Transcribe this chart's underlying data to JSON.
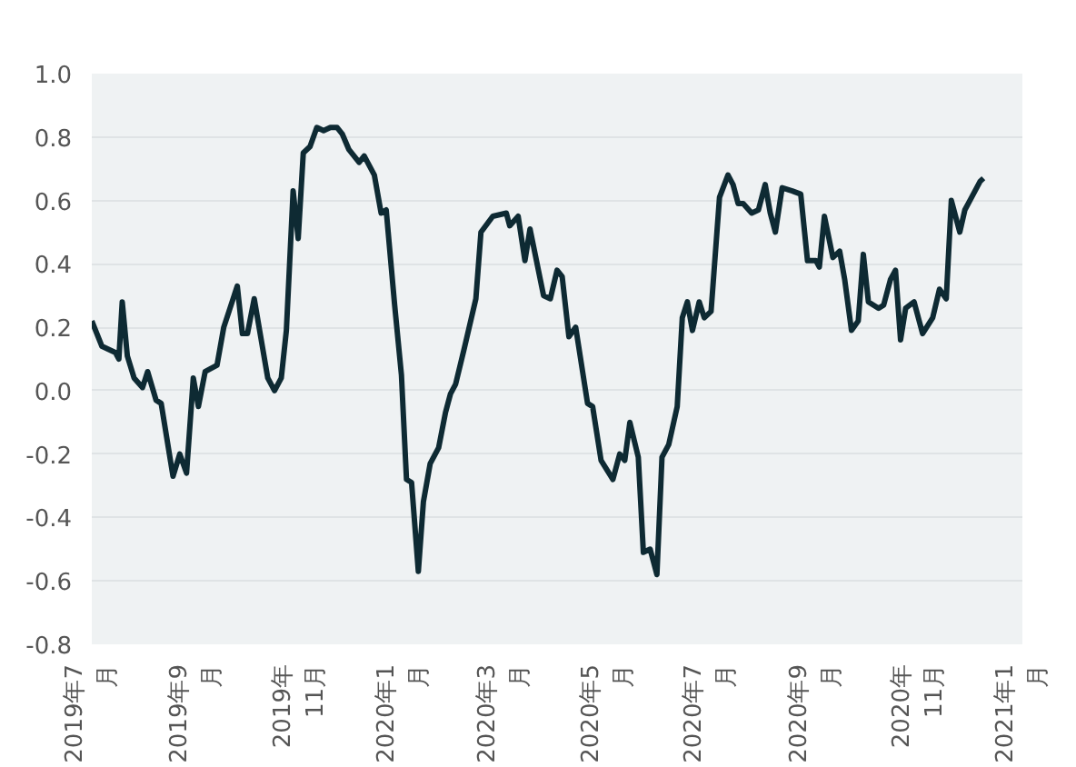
{
  "chart_data": {
    "type": "line",
    "grid": "y",
    "line_style": "solid",
    "marker": "none",
    "x": [
      "2019-07-01",
      "2019-07-07",
      "2019-07-15",
      "2019-07-17",
      "2019-07-19",
      "2019-07-22",
      "2019-07-26",
      "2019-07-31",
      "2019-08-03",
      "2019-08-08",
      "2019-08-11",
      "2019-08-18",
      "2019-08-22",
      "2019-08-26",
      "2019-08-30",
      "2019-09-02",
      "2019-09-06",
      "2019-09-13",
      "2019-09-17",
      "2019-09-25",
      "2019-09-28",
      "2019-10-01",
      "2019-10-05",
      "2019-10-13",
      "2019-10-17",
      "2019-10-21",
      "2019-10-24",
      "2019-10-28",
      "2019-10-31",
      "2019-11-03",
      "2019-11-07",
      "2019-11-11",
      "2019-11-15",
      "2019-11-19",
      "2019-11-23",
      "2019-11-26",
      "2019-11-30",
      "2019-12-06",
      "2019-12-09",
      "2019-12-15",
      "2019-12-19",
      "2019-12-22",
      "2019-12-27",
      "2019-12-31",
      "2020-01-03",
      "2020-01-06",
      "2020-01-10",
      "2020-01-13",
      "2020-01-17",
      "2020-01-22",
      "2020-01-26",
      "2020-01-29",
      "2020-02-01",
      "2020-02-06",
      "2020-02-13",
      "2020-02-16",
      "2020-02-23",
      "2020-03-02",
      "2020-03-04",
      "2020-03-09",
      "2020-03-13",
      "2020-03-16",
      "2020-03-24",
      "2020-03-28",
      "2020-04-01",
      "2020-04-04",
      "2020-04-08",
      "2020-04-12",
      "2020-04-19",
      "2020-04-22",
      "2020-04-27",
      "2020-05-04",
      "2020-05-08",
      "2020-05-11",
      "2020-05-14",
      "2020-05-19",
      "2020-05-22",
      "2020-05-26",
      "2020-05-30",
      "2020-06-02",
      "2020-06-06",
      "2020-06-11",
      "2020-06-14",
      "2020-06-17",
      "2020-06-20",
      "2020-06-24",
      "2020-06-27",
      "2020-07-01",
      "2020-07-06",
      "2020-07-11",
      "2020-07-14",
      "2020-07-17",
      "2020-07-20",
      "2020-07-25",
      "2020-07-29",
      "2020-08-02",
      "2020-08-05",
      "2020-08-08",
      "2020-08-12",
      "2020-08-18",
      "2020-08-23",
      "2020-08-27",
      "2020-09-01",
      "2020-09-03",
      "2020-09-06",
      "2020-09-11",
      "2020-09-15",
      "2020-09-18",
      "2020-09-22",
      "2020-09-26",
      "2020-09-29",
      "2020-10-02",
      "2020-10-08",
      "2020-10-11",
      "2020-10-15",
      "2020-10-18",
      "2020-10-21",
      "2020-10-24",
      "2020-10-29",
      "2020-11-03",
      "2020-11-09",
      "2020-11-13",
      "2020-11-17",
      "2020-11-20",
      "2020-11-25",
      "2020-11-28",
      "2020-12-02",
      "2020-12-07",
      "2020-12-09"
    ],
    "series": [
      {
        "color": "#0e2a33",
        "values": [
          0.22,
          0.14,
          0.12,
          0.1,
          0.28,
          0.11,
          0.04,
          0.01,
          0.06,
          -0.03,
          -0.04,
          -0.27,
          -0.2,
          -0.26,
          0.04,
          -0.05,
          0.06,
          0.08,
          0.2,
          0.33,
          0.18,
          0.18,
          0.29,
          0.04,
          0.0,
          0.04,
          0.19,
          0.63,
          0.48,
          0.75,
          0.77,
          0.83,
          0.82,
          0.83,
          0.83,
          0.81,
          0.76,
          0.72,
          0.74,
          0.68,
          0.56,
          0.57,
          0.27,
          0.05,
          -0.28,
          -0.29,
          -0.57,
          -0.35,
          -0.23,
          -0.18,
          -0.07,
          -0.01,
          0.02,
          0.13,
          0.29,
          0.5,
          0.55,
          0.56,
          0.52,
          0.55,
          0.41,
          0.51,
          0.3,
          0.29,
          0.38,
          0.36,
          0.17,
          0.2,
          -0.04,
          -0.05,
          -0.22,
          -0.28,
          -0.2,
          -0.22,
          -0.1,
          -0.21,
          -0.51,
          -0.5,
          -0.58,
          -0.21,
          -0.17,
          -0.05,
          0.23,
          0.28,
          0.19,
          0.28,
          0.23,
          0.25,
          0.61,
          0.68,
          0.65,
          0.59,
          0.59,
          0.56,
          0.57,
          0.65,
          0.56,
          0.5,
          0.64,
          0.63,
          0.62,
          0.41,
          0.41,
          0.39,
          0.55,
          0.42,
          0.44,
          0.35,
          0.19,
          0.22,
          0.43,
          0.28,
          0.26,
          0.27,
          0.35,
          0.38,
          0.16,
          0.26,
          0.28,
          0.18,
          0.23,
          0.32,
          0.29,
          0.6,
          0.5,
          0.57,
          0.61,
          0.66,
          0.67
        ]
      }
    ],
    "xlim": [
      "2019-07-01",
      "2021-01-01"
    ],
    "xticks": [
      {
        "value": "2019-07-01",
        "label": "2019年7月"
      },
      {
        "value": "2019-09-01",
        "label": "2019年9月"
      },
      {
        "value": "2019-11-01",
        "label": "2019年11月"
      },
      {
        "value": "2020-01-01",
        "label": "2020年1月"
      },
      {
        "value": "2020-03-01",
        "label": "2020年3月"
      },
      {
        "value": "2020-05-01",
        "label": "2020年5月"
      },
      {
        "value": "2020-07-01",
        "label": "2020年7月"
      },
      {
        "value": "2020-09-01",
        "label": "2020年9月"
      },
      {
        "value": "2020-11-01",
        "label": "2020年11月"
      },
      {
        "value": "2021-01-01",
        "label": "2021年1月"
      }
    ],
    "ylim": [
      -0.8,
      1.0
    ],
    "yticks": [
      {
        "value": 1.0,
        "label": "1.0"
      },
      0.8,
      0.6,
      0.4,
      0.2,
      {
        "value": 0.0,
        "label": "0.0"
      },
      -0.2,
      -0.4,
      -0.6,
      -0.8
    ]
  }
}
